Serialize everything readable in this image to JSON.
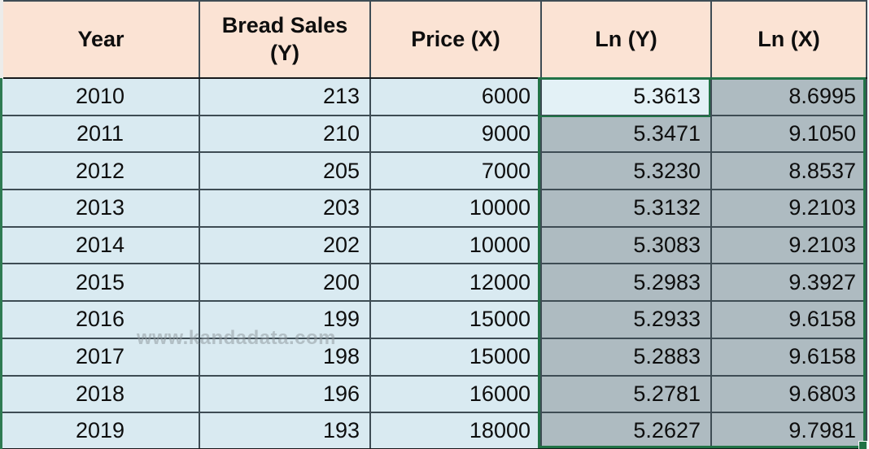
{
  "table": {
    "columns": [
      {
        "key": "year",
        "label": "Year"
      },
      {
        "key": "bread_sales",
        "label": "Bread Sales (Y)"
      },
      {
        "key": "price",
        "label": "Price (X)"
      },
      {
        "key": "ln_y",
        "label": "Ln (Y)"
      },
      {
        "key": "ln_x",
        "label": "Ln (X)"
      }
    ],
    "rows": [
      {
        "year": "2010",
        "bread_sales": "213",
        "price": "6000",
        "ln_y": "5.3613",
        "ln_x": "8.6995"
      },
      {
        "year": "2011",
        "bread_sales": "210",
        "price": "9000",
        "ln_y": "5.3471",
        "ln_x": "9.1050"
      },
      {
        "year": "2012",
        "bread_sales": "205",
        "price": "7000",
        "ln_y": "5.3230",
        "ln_x": "8.8537"
      },
      {
        "year": "2013",
        "bread_sales": "203",
        "price": "10000",
        "ln_y": "5.3132",
        "ln_x": "9.2103"
      },
      {
        "year": "2014",
        "bread_sales": "202",
        "price": "10000",
        "ln_y": "5.3083",
        "ln_x": "9.2103"
      },
      {
        "year": "2015",
        "bread_sales": "200",
        "price": "12000",
        "ln_y": "5.2983",
        "ln_x": "9.3927"
      },
      {
        "year": "2016",
        "bread_sales": "199",
        "price": "15000",
        "ln_y": "5.2933",
        "ln_x": "9.6158"
      },
      {
        "year": "2017",
        "bread_sales": "198",
        "price": "15000",
        "ln_y": "5.2883",
        "ln_x": "9.6158"
      },
      {
        "year": "2018",
        "bread_sales": "196",
        "price": "16000",
        "ln_y": "5.2781",
        "ln_x": "9.6803"
      },
      {
        "year": "2019",
        "bread_sales": "193",
        "price": "18000",
        "ln_y": "5.2627",
        "ln_x": "9.7981"
      }
    ]
  },
  "selection": {
    "range_columns": [
      "ln_y",
      "ln_x"
    ],
    "active_column": "ln_y",
    "active_row_index": 0
  },
  "watermark": "www.kandadata.com",
  "colors": {
    "header_bg": "#fbe3d4",
    "row_bg": "#d9eaf1",
    "selected_bg": "#aebbc1",
    "active_cell_bg": "#e3f1f6",
    "selection_green": "#217346",
    "grid_border": "#3e4c54",
    "outer_border": "#17191b"
  }
}
